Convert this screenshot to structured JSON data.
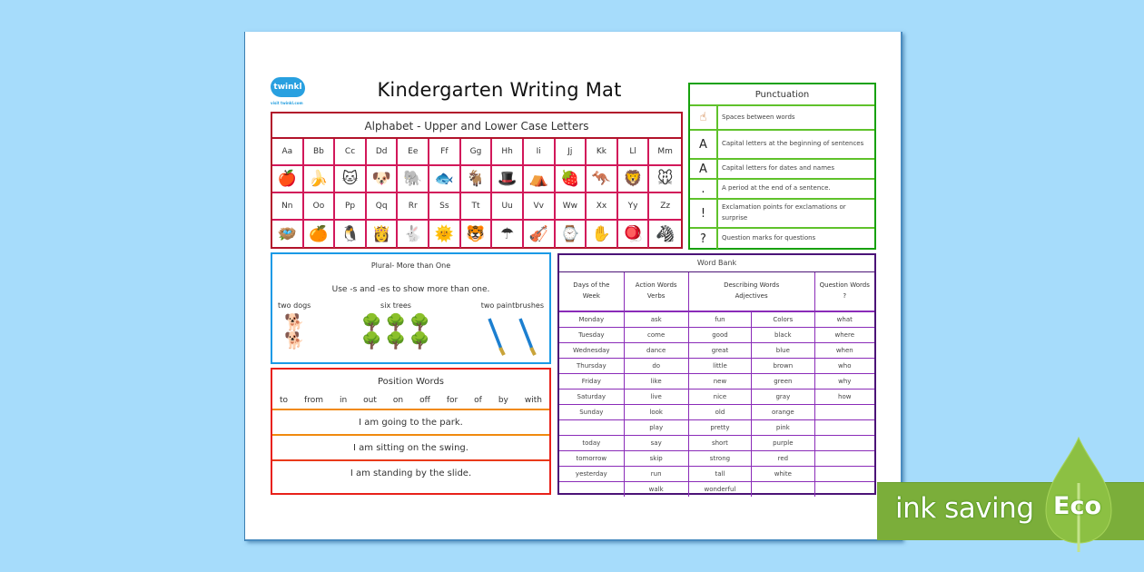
{
  "document": {
    "title": "Kindergarten Writing Mat",
    "logo": {
      "name": "twinkl",
      "tagline": "visit twinkl.com"
    }
  },
  "alphabet": {
    "heading": "Alphabet - Upper and Lower Case Letters",
    "row1_letters": [
      "Aa",
      "Bb",
      "Cc",
      "Dd",
      "Ee",
      "Ff",
      "Gg",
      "Hh",
      "Ii",
      "Jj",
      "Kk",
      "Ll",
      "Mm"
    ],
    "row1_pictures": [
      "apple",
      "banana",
      "cat",
      "dog",
      "elephant",
      "fish",
      "goat",
      "hat",
      "igloo",
      "jam",
      "kangaroo",
      "lion",
      "mouse"
    ],
    "row1_icons": [
      "🍎",
      "🍌",
      "🐱",
      "🐶",
      "🐘",
      "🐟",
      "🐐",
      "🎩",
      "⛺",
      "🍓",
      "🦘",
      "🦁",
      "🐭"
    ],
    "row2_letters": [
      "Nn",
      "Oo",
      "Pp",
      "Qq",
      "Rr",
      "Ss",
      "Tt",
      "Uu",
      "Vv",
      "Ww",
      "Xx",
      "Yy",
      "Zz"
    ],
    "row2_pictures": [
      "nest",
      "orange",
      "penguin",
      "queen",
      "rabbit",
      "sun",
      "tiger",
      "umbrella",
      "violin",
      "watch",
      "x-ray",
      "yo-yo",
      "zebra"
    ],
    "row2_icons": [
      "🪺",
      "🍊",
      "🐧",
      "👸",
      "🐇",
      "🌞",
      "🐯",
      "☂",
      "🎻",
      "⌚",
      "✋",
      "🪀",
      "🦓"
    ]
  },
  "punctuation": {
    "heading": "Punctuation",
    "rows": [
      {
        "symbol": "☝",
        "icon": "finger-space",
        "text": "Spaces between words"
      },
      {
        "symbol": "A",
        "text": "Capital letters at the beginning of sentences"
      },
      {
        "symbol": "A",
        "text": "Capital letters for dates and names"
      },
      {
        "symbol": ".",
        "text": "A period at the end of a sentence."
      },
      {
        "symbol": "!",
        "text": "Exclamation points for exclamations or surprise"
      },
      {
        "symbol": "?",
        "text": "Question marks for questions"
      }
    ]
  },
  "plural": {
    "heading": "Plural- More than One",
    "instruction": "Use -s and -es to show more than one.",
    "items": [
      {
        "label": "two dogs",
        "icon": "🐕",
        "count": 2
      },
      {
        "label": "six trees",
        "icon": "🌳",
        "count": 6
      },
      {
        "label": "two paintbrushes",
        "icon": "🖌",
        "count": 2
      }
    ]
  },
  "position": {
    "heading": "Position Words",
    "words": [
      "to",
      "from",
      "in",
      "out",
      "on",
      "off",
      "for",
      "of",
      "by",
      "with"
    ],
    "sentences": [
      "I am going to the park.",
      "I am sitting on the swing.",
      "I am standing by the slide."
    ]
  },
  "word_bank": {
    "heading": "Word Bank",
    "columns": {
      "days": [
        "Days of the",
        "Week"
      ],
      "verbs": [
        "Action Words",
        "Verbs"
      ],
      "adjectives": [
        "Describing Words",
        "Adjectives"
      ],
      "questions": [
        "Question Words",
        "?"
      ]
    },
    "rows": [
      [
        "Monday",
        "ask",
        "fun",
        "Colors",
        "what"
      ],
      [
        "Tuesday",
        "come",
        "good",
        "black",
        "where"
      ],
      [
        "Wednesday",
        "dance",
        "great",
        "blue",
        "when"
      ],
      [
        "Thursday",
        "do",
        "little",
        "brown",
        "who"
      ],
      [
        "Friday",
        "like",
        "new",
        "green",
        "why"
      ],
      [
        "Saturday",
        "live",
        "nice",
        "gray",
        "how"
      ],
      [
        "Sunday",
        "look",
        "old",
        "orange",
        ""
      ],
      [
        "",
        "play",
        "pretty",
        "pink",
        ""
      ],
      [
        "today",
        "say",
        "short",
        "purple",
        ""
      ],
      [
        "tomorrow",
        "skip",
        "strong",
        "red",
        ""
      ],
      [
        "yesterday",
        "run",
        "tall",
        "white",
        ""
      ],
      [
        "",
        "walk",
        "wonderful",
        "",
        ""
      ]
    ]
  },
  "badge": {
    "text": "ink saving",
    "eco": "Eco"
  },
  "colors": {
    "background": "#a6dcfb",
    "alphabet_border": "#b2142b",
    "punctuation_border": "#17a10c",
    "plural_border": "#1a9ae6",
    "position_border": "#e8211a",
    "word_bank_border": "#4b1377",
    "eco_green": "#7bae3a"
  }
}
